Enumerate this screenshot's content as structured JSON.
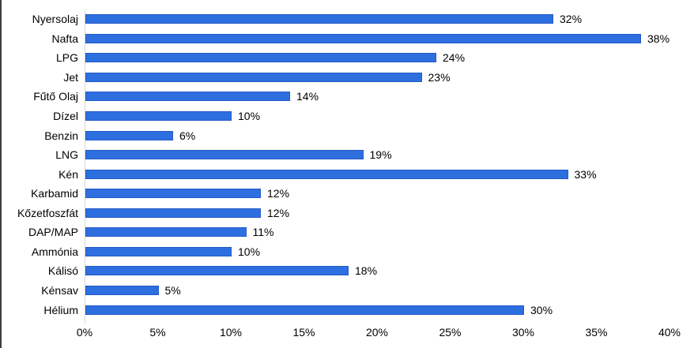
{
  "chart_data": {
    "type": "bar",
    "orientation": "horizontal",
    "title": "",
    "xlabel": "",
    "ylabel": "",
    "xlim": [
      0,
      40
    ],
    "grid": false,
    "legend": false,
    "categories": [
      "Nyersolaj",
      "Nafta",
      "LPG",
      "Jet",
      "Fűtő Olaj",
      "Dízel",
      "Benzin",
      "LNG",
      "Kén",
      "Karbamid",
      "Kőzetfoszfát",
      "DAP/MAP",
      "Ammónia",
      "Kálisó",
      "Kénsav",
      "Hélium"
    ],
    "values": [
      32,
      38,
      24,
      23,
      14,
      10,
      6,
      19,
      33,
      12,
      12,
      11,
      10,
      18,
      5,
      30
    ],
    "value_labels": [
      "32%",
      "38%",
      "24%",
      "23%",
      "14%",
      "10%",
      "6%",
      "19%",
      "33%",
      "12%",
      "12%",
      "11%",
      "10%",
      "18%",
      "5%",
      "30%"
    ],
    "x_ticks": [
      "0%",
      "5%",
      "10%",
      "15%",
      "20%",
      "25%",
      "30%",
      "35%",
      "40%"
    ],
    "x_tick_values": [
      0,
      5,
      10,
      15,
      20,
      25,
      30,
      35,
      40
    ],
    "bar_color": "#2e6fe0",
    "bar_border_color": "#2459c8",
    "axis_line_color": "#d9d9d9",
    "text_color": "#000000",
    "background_color": "#ffffff"
  }
}
